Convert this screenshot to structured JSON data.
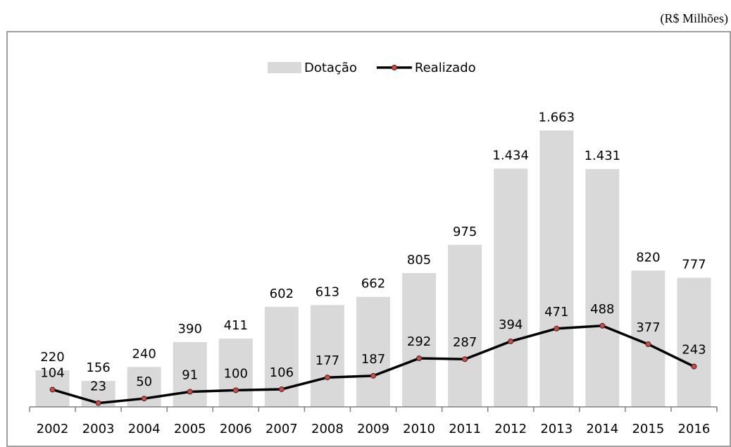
{
  "chart_data": {
    "type": "bar-line",
    "unit_label": "(R$ Milhões)",
    "categories": [
      "2002",
      "2003",
      "2004",
      "2005",
      "2006",
      "2007",
      "2008",
      "2009",
      "2010",
      "2011",
      "2012",
      "2013",
      "2014",
      "2015",
      "2016"
    ],
    "series": [
      {
        "name": "Dotação",
        "type": "bar",
        "color": "#d9d9d9",
        "values": [
          220,
          156,
          240,
          390,
          411,
          602,
          613,
          662,
          805,
          975,
          1434,
          1663,
          1431,
          820,
          777
        ],
        "value_labels": [
          "220",
          "156",
          "240",
          "390",
          "411",
          "602",
          "613",
          "662",
          "805",
          "975",
          "1.434",
          "1.663",
          "1.431",
          "820",
          "777"
        ]
      },
      {
        "name": "Realizado",
        "type": "line",
        "color": "#000000",
        "marker_color": "#c0504d",
        "values": [
          104,
          23,
          50,
          91,
          100,
          106,
          177,
          187,
          292,
          287,
          394,
          471,
          488,
          377,
          243
        ]
      }
    ],
    "ylim": [
      0,
      1800
    ],
    "legend": "top"
  }
}
